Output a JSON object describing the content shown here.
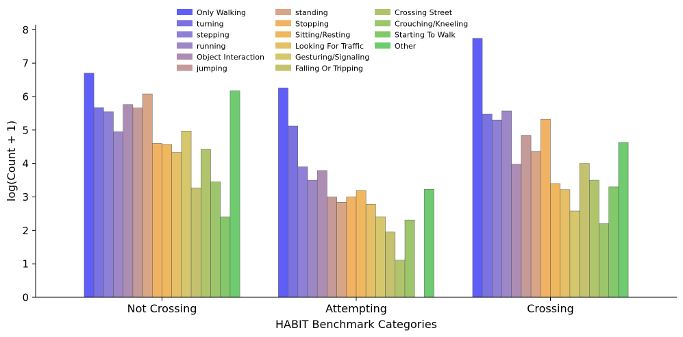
{
  "chart_data": {
    "type": "bar",
    "title": "",
    "xlabel": "HABIT Benchmark Categories",
    "ylabel": "log(Count + 1)",
    "ylim": [
      0,
      8.15
    ],
    "yticks": [
      0,
      1,
      2,
      3,
      4,
      5,
      6,
      7,
      8
    ],
    "grid": false,
    "legend_position": "top-center",
    "categories": [
      "Not Crossing",
      "Attempting",
      "Crossing"
    ],
    "series": [
      {
        "name": "Only Walking",
        "color": "#5f5ff8",
        "values": [
          6.7,
          6.26,
          7.74
        ]
      },
      {
        "name": "turning",
        "color": "#7b72e2",
        "values": [
          5.67,
          5.12,
          5.48
        ]
      },
      {
        "name": "stepping",
        "color": "#8d80d6",
        "values": [
          5.55,
          3.9,
          5.3
        ]
      },
      {
        "name": "running",
        "color": "#9d87c7",
        "values": [
          4.95,
          3.5,
          5.57
        ]
      },
      {
        "name": "Object Interaction",
        "color": "#ad8db4",
        "values": [
          5.76,
          3.79,
          3.98
        ]
      },
      {
        "name": "jumping",
        "color": "#c59a98",
        "values": [
          5.66,
          3.0,
          4.84
        ]
      },
      {
        "name": "standing",
        "color": "#d8a686",
        "values": [
          6.08,
          2.84,
          4.36
        ]
      },
      {
        "name": "Stopping",
        "color": "#f2b264",
        "values": [
          4.6,
          3.0,
          5.32
        ]
      },
      {
        "name": "Sitting/Resting",
        "color": "#f0b85e",
        "values": [
          4.57,
          3.19,
          3.4
        ]
      },
      {
        "name": "Looking For Traffic",
        "color": "#e6c066",
        "values": [
          4.33,
          2.78,
          3.22
        ]
      },
      {
        "name": "Gesturing/Signaling",
        "color": "#d6c76c",
        "values": [
          4.97,
          2.4,
          2.58
        ]
      },
      {
        "name": "Falling Or Tripping",
        "color": "#c4c26e",
        "values": [
          3.27,
          1.95,
          4.0
        ]
      },
      {
        "name": "Crossing Street",
        "color": "#b0c46c",
        "values": [
          4.42,
          1.11,
          3.5
        ]
      },
      {
        "name": "Crouching/Kneeling",
        "color": "#9dc66c",
        "values": [
          3.45,
          2.31,
          2.2
        ]
      },
      {
        "name": "Starting To Walk",
        "color": "#83c96c",
        "values": [
          2.4,
          0,
          3.3
        ]
      },
      {
        "name": "Other",
        "color": "#6fcb6f",
        "values": [
          6.17,
          3.23,
          4.63
        ]
      }
    ]
  }
}
